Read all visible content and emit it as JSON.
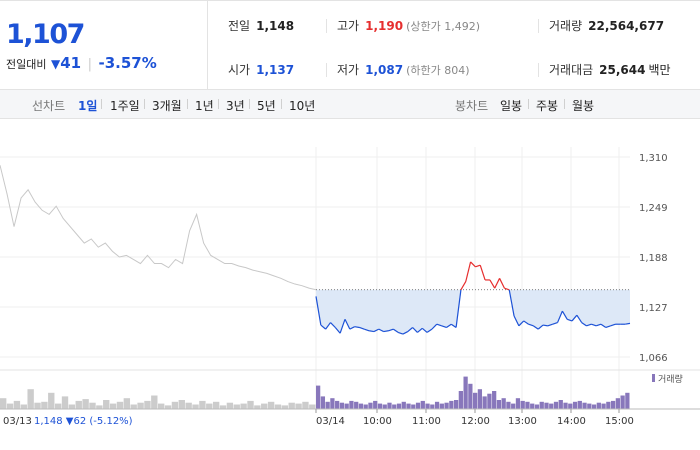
{
  "quote": {
    "price": "1,107",
    "change_label": "전일대비",
    "change_symbol": "▼",
    "change_amount": "41",
    "change_rate": "-3.57%",
    "prev_close": {
      "label": "전일",
      "value": "1,148"
    },
    "open": {
      "label": "시가",
      "value": "1,137"
    },
    "high": {
      "label": "고가",
      "value": "1,190",
      "limit": "(상한가 1,492)"
    },
    "low": {
      "label": "저가",
      "value": "1,087",
      "limit": "(하한가 804)"
    },
    "volume": {
      "label": "거래량",
      "value": "22,564,677"
    },
    "amount": {
      "label": "거래대금",
      "value": "25,644",
      "unit": "백만"
    }
  },
  "tabs": {
    "line_label": "선차트",
    "line_tabs": [
      "1일",
      "1주일",
      "3개월",
      "1년",
      "3년",
      "5년",
      "10년"
    ],
    "candle_label": "봉차트",
    "candle_tabs": [
      "일봉",
      "주봉",
      "월봉"
    ]
  },
  "colors": {
    "up": "#e62e2e",
    "down": "#1d52d6",
    "prev_day_line": "#c8c8c8",
    "volume_today": "#8877bb",
    "volume_prev": "#cccccc",
    "fill": "#dde8f7"
  },
  "chart_data": {
    "type": "line",
    "y_ticks": [
      "1,310",
      "1,249",
      "1,188",
      "1,127",
      "1,066"
    ],
    "ylim": [
      1066,
      1310
    ],
    "prev_close_line": 1148,
    "x_ticks": [
      "03/14",
      "10:00",
      "11:00",
      "12:00",
      "13:00",
      "14:00",
      "15:00"
    ],
    "prev_session": {
      "date": "03/13",
      "summary": "1,148 ▼62 (-5.12%)",
      "points": [
        1300,
        1265,
        1225,
        1260,
        1270,
        1255,
        1245,
        1240,
        1250,
        1235,
        1225,
        1215,
        1205,
        1210,
        1200,
        1205,
        1195,
        1188,
        1190,
        1185,
        1180,
        1190,
        1180,
        1180,
        1175,
        1185,
        1180,
        1220,
        1240,
        1205,
        1190,
        1185,
        1180,
        1180,
        1177,
        1175,
        1172,
        1170,
        1168,
        1165,
        1162,
        1158,
        1155,
        1153,
        1150,
        1148
      ]
    },
    "today_session": {
      "points": [
        1140,
        1105,
        1100,
        1108,
        1102,
        1095,
        1112,
        1100,
        1103,
        1102,
        1100,
        1098,
        1097,
        1100,
        1097,
        1098,
        1100,
        1096,
        1094,
        1097,
        1102,
        1096,
        1101,
        1096,
        1100,
        1106,
        1104,
        1102,
        1106,
        1102,
        1148,
        1158,
        1182,
        1176,
        1178,
        1160,
        1160,
        1150,
        1162,
        1150,
        1148,
        1116,
        1104,
        1110,
        1106,
        1104,
        1100,
        1105,
        1104,
        1106,
        1108,
        1122,
        1112,
        1110,
        1117,
        1108,
        1104,
        1106,
        1104,
        1106,
        1102,
        1104,
        1106,
        1106,
        1106,
        1107
      ]
    },
    "volume_legend": "거래량",
    "volume": {
      "prev": [
        12,
        6,
        9,
        5,
        22,
        7,
        8,
        18,
        6,
        14,
        5,
        9,
        11,
        7,
        4,
        10,
        6,
        8,
        12,
        5,
        7,
        9,
        15,
        6,
        4,
        8,
        10,
        7,
        5,
        9,
        6,
        8,
        4,
        7,
        5,
        6,
        9,
        4,
        6,
        8,
        5,
        4,
        7,
        6,
        8,
        5
      ],
      "today": [
        26,
        14,
        8,
        12,
        9,
        7,
        6,
        9,
        8,
        6,
        5,
        7,
        9,
        6,
        5,
        7,
        5,
        6,
        8,
        6,
        5,
        7,
        9,
        6,
        5,
        8,
        6,
        7,
        9,
        10,
        20,
        36,
        28,
        18,
        22,
        14,
        17,
        20,
        10,
        12,
        8,
        6,
        12,
        9,
        8,
        6,
        5,
        8,
        7,
        6,
        8,
        10,
        7,
        6,
        8,
        9,
        7,
        6,
        5,
        7,
        6,
        8,
        9,
        12,
        15,
        18
      ]
    }
  }
}
